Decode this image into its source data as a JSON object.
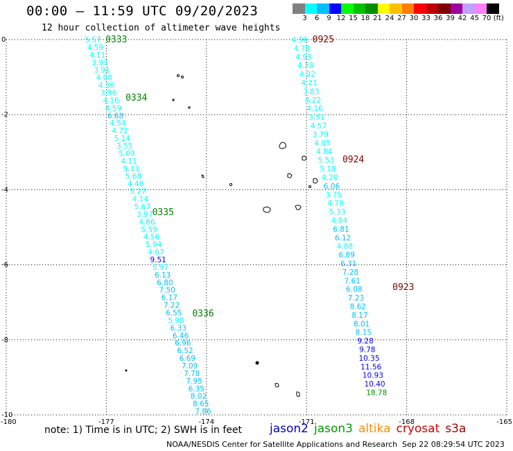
{
  "header": {
    "title": "00:00 – 11:59 UTC 09/20/2023",
    "subtitle": "12 hour collection of altimeter wave heights"
  },
  "colorbar": {
    "colors": [
      "#808080",
      "#00ffff",
      "#00bfff",
      "#0000ff",
      "#00ff00",
      "#00c000",
      "#009000",
      "#ffff00",
      "#ffc000",
      "#ff8000",
      "#ff0000",
      "#c00000",
      "#800000",
      "#a000a0",
      "#c0a0ff",
      "#ff80ff",
      "#000000"
    ],
    "labels": [
      "3",
      "6",
      "9",
      "12",
      "15",
      "18",
      "21",
      "24",
      "27",
      "30",
      "33",
      "36",
      "39",
      "42",
      "45",
      "70"
    ],
    "unit": "(ft)"
  },
  "footer": {
    "note": "note: 1) Time is in UTC; 2) SWH is in feet",
    "legend": [
      {
        "name": "jason2",
        "color": "#0000cc"
      },
      {
        "name": "jason3",
        "color": "#009900"
      },
      {
        "name": "altika",
        "color": "#ff8c00"
      },
      {
        "name": "cryosat",
        "color": "#cc0000"
      },
      {
        "name": "s3a",
        "color": "#990000"
      }
    ],
    "credit": "NOAA/NESDIS Center for Satellite Applications and Research",
    "timestamp": "Sep 22 08:29:54 UTC 2023"
  },
  "chart_data": {
    "type": "scatter",
    "xlim": [
      -180,
      -165
    ],
    "ylim": [
      -10,
      0
    ],
    "x_ticks": [
      "-180",
      "-177",
      "-174",
      "-171",
      "-168",
      "-165"
    ],
    "y_ticks": [
      "0",
      "-2",
      "-4",
      "-6",
      "-8",
      "-10"
    ],
    "grid": true,
    "series": [
      {
        "name": "jason3",
        "color": "#009900",
        "track_start": [
          -177.4,
          0
        ],
        "track_end": [
          -174.1,
          -9.9
        ],
        "time_labels": [
          {
            "text": "0333",
            "lon": -176.9,
            "lat": 0.0
          },
          {
            "text": "0334",
            "lon": -176.3,
            "lat": -1.55
          },
          {
            "text": "0335",
            "lon": -175.5,
            "lat": -4.6
          },
          {
            "text": "0336",
            "lon": -174.3,
            "lat": -7.3
          }
        ],
        "values": [
          "5.57",
          "4.59",
          "4.11",
          "3.93",
          "3.91",
          "4.08",
          "4.36",
          "3.96",
          "4.16",
          "4.59",
          "6.68",
          "4.54",
          "4.72",
          "5.14",
          "3.55",
          "5.09",
          "4.11",
          "5.13",
          "5.68",
          "4.48",
          "5.27",
          "4.14",
          "5.67",
          "3.97",
          "4.86",
          "5.59",
          "4.56",
          "5.94",
          "4.67",
          "9.51",
          "5.97",
          "6.13",
          "6.80",
          "7.50",
          "6.17",
          "7.22",
          "6.55",
          "5.98",
          "6.33",
          "6.46",
          "6.96",
          "6.52",
          "6.69",
          "7.09",
          "7.78",
          "7.95",
          "6.35",
          "8.02",
          "8.65",
          "7.86"
        ]
      },
      {
        "name": "cryosat",
        "color": "#cc0000",
        "track_start": [
          -171.2,
          0
        ],
        "track_end": [
          -168.9,
          -9.4
        ],
        "time_labels": [
          {
            "text": "0925",
            "lon": -170.7,
            "lat": 0.0
          },
          {
            "text": "0924",
            "lon": -169.8,
            "lat": -3.2
          },
          {
            "text": "0923",
            "lon": -168.3,
            "lat": -6.6
          }
        ],
        "values": [
          "4.96",
          "4.78",
          "4.93",
          "4.28",
          "4.22",
          "4.21",
          "3.83",
          "4.22",
          "4.16",
          "3.51",
          "4.57",
          "3.79",
          "4.05",
          "4.84",
          "5.53",
          "5.18",
          "4.20",
          "6.06",
          "3.75",
          "4.78",
          "5.33",
          "4.84",
          "6.81",
          "6.12",
          "4.88",
          "6.89",
          "6.31",
          "7.28",
          "7.61",
          "6.08",
          "7.23",
          "8.62",
          "8.17",
          "8.01",
          "8.15",
          "9.28",
          "9.78",
          "10.35",
          "11.56",
          "10.93",
          "10.40",
          "18.78"
        ]
      }
    ]
  }
}
